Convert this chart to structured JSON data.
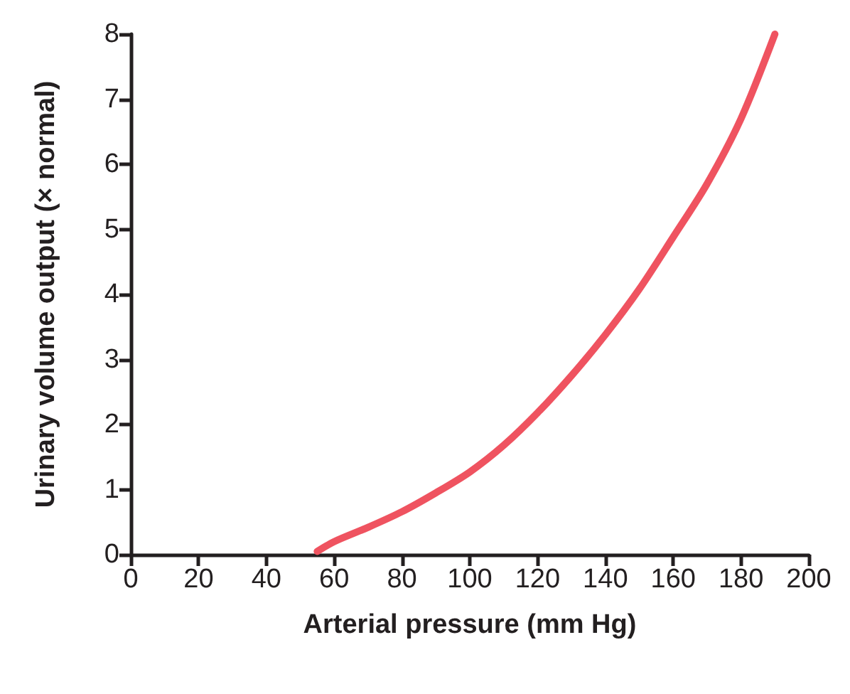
{
  "chart_data": {
    "type": "line",
    "xlabel": "Arterial pressure (mm Hg)",
    "ylabel": "Urinary volume output (× normal)",
    "x": [
      55,
      60,
      70,
      80,
      90,
      100,
      110,
      120,
      130,
      140,
      150,
      160,
      170,
      180,
      190
    ],
    "series": [
      {
        "color": "#ef5360",
        "values": [
          0.05,
          0.2,
          0.42,
          0.66,
          0.95,
          1.27,
          1.68,
          2.18,
          2.75,
          3.38,
          4.08,
          4.88,
          5.7,
          6.7,
          8.0
        ]
      }
    ],
    "xlim": [
      0,
      200
    ],
    "xticks": [
      0,
      20,
      40,
      60,
      80,
      100,
      120,
      140,
      160,
      180,
      200
    ],
    "ylim": [
      0,
      8
    ],
    "yticks": [
      0,
      1,
      2,
      3,
      4,
      5,
      6,
      7,
      8
    ],
    "grid": false,
    "marker": "none",
    "line_style": "solid"
  }
}
